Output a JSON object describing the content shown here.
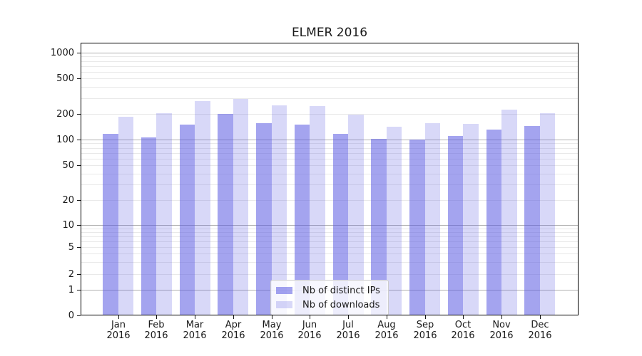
{
  "title": "ELMER 2016",
  "colors": {
    "bar_distinct_ips": "rgba(90,90,225,0.55)",
    "bar_downloads": "rgba(90,90,225,0.24)",
    "major_grid": "#b0b0b0",
    "minor_grid": "#e9e9e9",
    "axis": "#000000",
    "text": "#1a1a1a"
  },
  "chart_data": {
    "type": "bar",
    "title": "ELMER 2016",
    "categories": [
      "Jan",
      "Feb",
      "Mar",
      "Apr",
      "May",
      "Jun",
      "Jul",
      "Aug",
      "Sep",
      "Oct",
      "Nov",
      "Dec"
    ],
    "category_year": "2016",
    "series": [
      {
        "name": "Nb of distinct IPs",
        "color": "rgba(90,90,225,0.55)",
        "values": [
          117,
          106,
          151,
          201,
          155,
          150,
          116,
          103,
          101,
          110,
          131,
          145
        ]
      },
      {
        "name": "Nb of downloads",
        "color": "rgba(90,90,225,0.24)",
        "values": [
          184,
          204,
          278,
          295,
          248,
          245,
          196,
          141,
          155,
          154,
          224,
          204
        ]
      }
    ],
    "xlabel": "",
    "ylabel": "",
    "yscale": "symlog",
    "y_tick_labels": [
      "0",
      "1",
      "2",
      "5",
      "10",
      "20",
      "50",
      "100",
      "200",
      "500",
      "1000"
    ],
    "y_major_gridlines": [
      1,
      10,
      100,
      1000
    ],
    "ylim": [
      0,
      1300
    ],
    "grid": "both",
    "legend_position": "lower center"
  }
}
